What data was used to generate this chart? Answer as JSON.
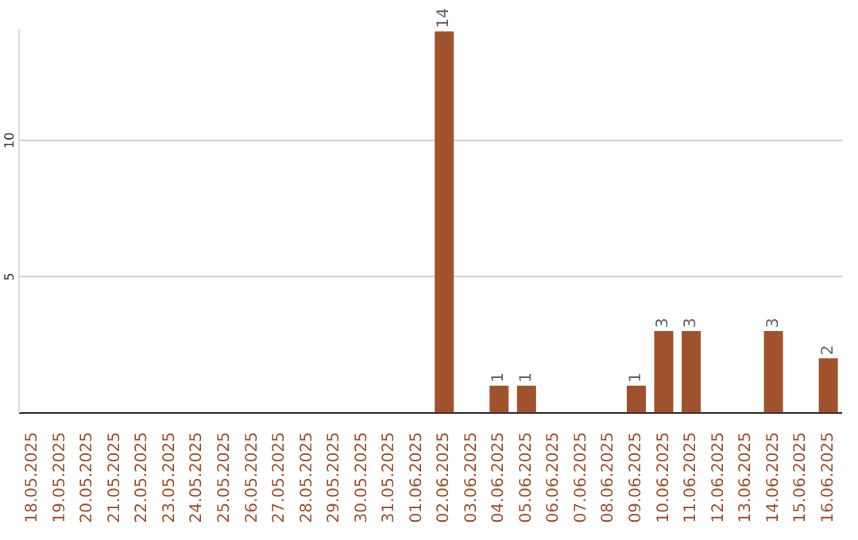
{
  "chart_data": {
    "type": "bar",
    "categories": [
      "18.05.2025",
      "19.05.2025",
      "20.05.2025",
      "21.05.2025",
      "22.05.2025",
      "23.05.2025",
      "24.05.2025",
      "25.05.2025",
      "26.05.2025",
      "27.05.2025",
      "28.05.2025",
      "29.05.2025",
      "30.05.2025",
      "31.05.2025",
      "01.06.2025",
      "02.06.2025",
      "03.06.2025",
      "04.06.2025",
      "05.06.2025",
      "06.06.2025",
      "07.06.2025",
      "08.06.2025",
      "09.06.2025",
      "10.06.2025",
      "11.06.2025",
      "12.06.2025",
      "13.06.2025",
      "14.06.2025",
      "15.06.2025",
      "16.06.2025"
    ],
    "values": [
      0,
      0,
      0,
      0,
      0,
      0,
      0,
      0,
      0,
      0,
      0,
      0,
      0,
      0,
      0,
      14,
      0,
      1,
      1,
      0,
      0,
      0,
      1,
      3,
      3,
      0,
      0,
      3,
      0,
      2
    ],
    "value_labels": [
      null,
      null,
      null,
      null,
      null,
      null,
      null,
      null,
      null,
      null,
      null,
      null,
      null,
      null,
      null,
      "14",
      null,
      "1",
      "1",
      null,
      null,
      null,
      "1",
      "3",
      "3",
      null,
      null,
      "3",
      null,
      "2"
    ],
    "color": "#a0522d",
    "ylim": [
      0,
      14.1
    ],
    "yticks": [
      5,
      10
    ],
    "grid": "y",
    "legend": false
  }
}
